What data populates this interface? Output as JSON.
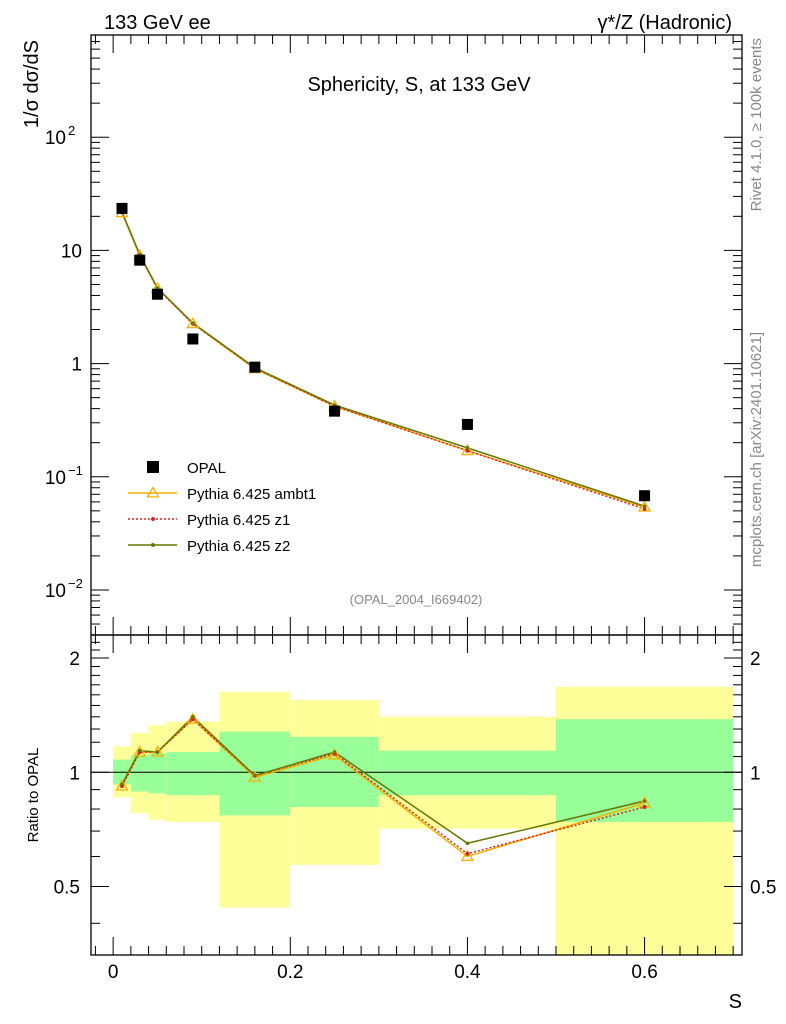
{
  "header": {
    "left_label": "133 GeV ee",
    "right_label": "γ*/Z (Hadronic)"
  },
  "side_labels": {
    "rivet": "Rivet 4.1.0, ≥ 100k events",
    "mcplots": "mcplots.cern.ch [arXiv:2401.10621]"
  },
  "chart_data": {
    "type": "scatter",
    "title": "Sphericity, S, at 133 GeV",
    "analysis_id": "(OPAL_2004_I669402)",
    "xlabel": "S",
    "ylabel": "1/σ  dσ/dS",
    "ratio_ylabel": "Ratio to OPAL",
    "xlim": [
      -0.025,
      0.71
    ],
    "ylim": [
      0.004,
      800
    ],
    "ylog": true,
    "ratio_ylim": [
      0.33,
      2.3
    ],
    "x_ticks": [
      {
        "v": 0,
        "label": "0"
      },
      {
        "v": 0.2,
        "label": "0.2"
      },
      {
        "v": 0.4,
        "label": "0.4"
      },
      {
        "v": 0.6,
        "label": "0.6"
      }
    ],
    "y_ticks": [
      {
        "v": 0.01,
        "base": "10",
        "exp": "−2"
      },
      {
        "v": 0.1,
        "base": "10",
        "exp": "−1"
      },
      {
        "v": 1,
        "base": "1",
        "exp": ""
      },
      {
        "v": 10,
        "base": "10",
        "exp": ""
      },
      {
        "v": 100,
        "base": "10",
        "exp": "2"
      }
    ],
    "ratio_ticks": [
      {
        "v": 0.5,
        "label": "0.5"
      },
      {
        "v": 1,
        "label": "1"
      },
      {
        "v": 2,
        "label": "2"
      }
    ],
    "bins": [
      {
        "lo": 0.0,
        "hi": 0.02
      },
      {
        "lo": 0.02,
        "hi": 0.04
      },
      {
        "lo": 0.04,
        "hi": 0.06
      },
      {
        "lo": 0.06,
        "hi": 0.12
      },
      {
        "lo": 0.12,
        "hi": 0.2
      },
      {
        "lo": 0.2,
        "hi": 0.3
      },
      {
        "lo": 0.3,
        "hi": 0.5
      },
      {
        "lo": 0.5,
        "hi": 0.7
      }
    ],
    "data": {
      "name": "OPAL",
      "x": [
        0.01,
        0.03,
        0.05,
        0.09,
        0.16,
        0.25,
        0.4,
        0.6
      ],
      "y": [
        23.5,
        8.2,
        4.1,
        1.65,
        0.93,
        0.38,
        0.29,
        0.068
      ],
      "ratio_band_inner": [
        [
          0.93,
          1.08
        ],
        [
          0.89,
          1.11
        ],
        [
          0.88,
          1.12
        ],
        [
          0.87,
          1.13
        ],
        [
          0.77,
          1.28
        ],
        [
          0.81,
          1.24
        ],
        [
          0.87,
          1.14
        ],
        [
          0.74,
          1.38
        ]
      ],
      "ratio_band_outer": [
        [
          0.86,
          1.17
        ],
        [
          0.78,
          1.27
        ],
        [
          0.75,
          1.33
        ],
        [
          0.74,
          1.36
        ],
        [
          0.44,
          1.63
        ],
        [
          0.57,
          1.55
        ],
        [
          0.71,
          1.4
        ],
        [
          0.31,
          1.68
        ]
      ]
    },
    "series": [
      {
        "name": "Pythia 6.425 ambt1",
        "color": "#f5b000",
        "style": "solid-triangle",
        "x": [
          0.01,
          0.03,
          0.05,
          0.09,
          0.16,
          0.25,
          0.4,
          0.6
        ],
        "y": [
          21.5,
          9.0,
          4.6,
          2.25,
          0.9,
          0.42,
          0.17,
          0.054
        ],
        "ratio": [
          0.92,
          1.13,
          1.13,
          1.38,
          0.97,
          1.11,
          0.6,
          0.83
        ]
      },
      {
        "name": "Pythia 6.425 z1",
        "color": "#dd2222",
        "style": "dotted",
        "x": [
          0.01,
          0.03,
          0.05,
          0.09,
          0.16,
          0.25,
          0.4,
          0.6
        ],
        "y": [
          21.7,
          9.1,
          4.6,
          2.25,
          0.91,
          0.42,
          0.17,
          0.052
        ],
        "ratio": [
          0.92,
          1.13,
          1.13,
          1.38,
          0.98,
          1.12,
          0.61,
          0.81
        ]
      },
      {
        "name": "Pythia 6.425 z2",
        "color": "#667700",
        "style": "solid-dot",
        "x": [
          0.01,
          0.03,
          0.05,
          0.09,
          0.16,
          0.25,
          0.4,
          0.6
        ],
        "y": [
          21.9,
          9.2,
          4.65,
          2.28,
          0.92,
          0.43,
          0.18,
          0.055
        ],
        "ratio": [
          0.93,
          1.14,
          1.13,
          1.4,
          0.98,
          1.13,
          0.65,
          0.84
        ]
      }
    ]
  }
}
